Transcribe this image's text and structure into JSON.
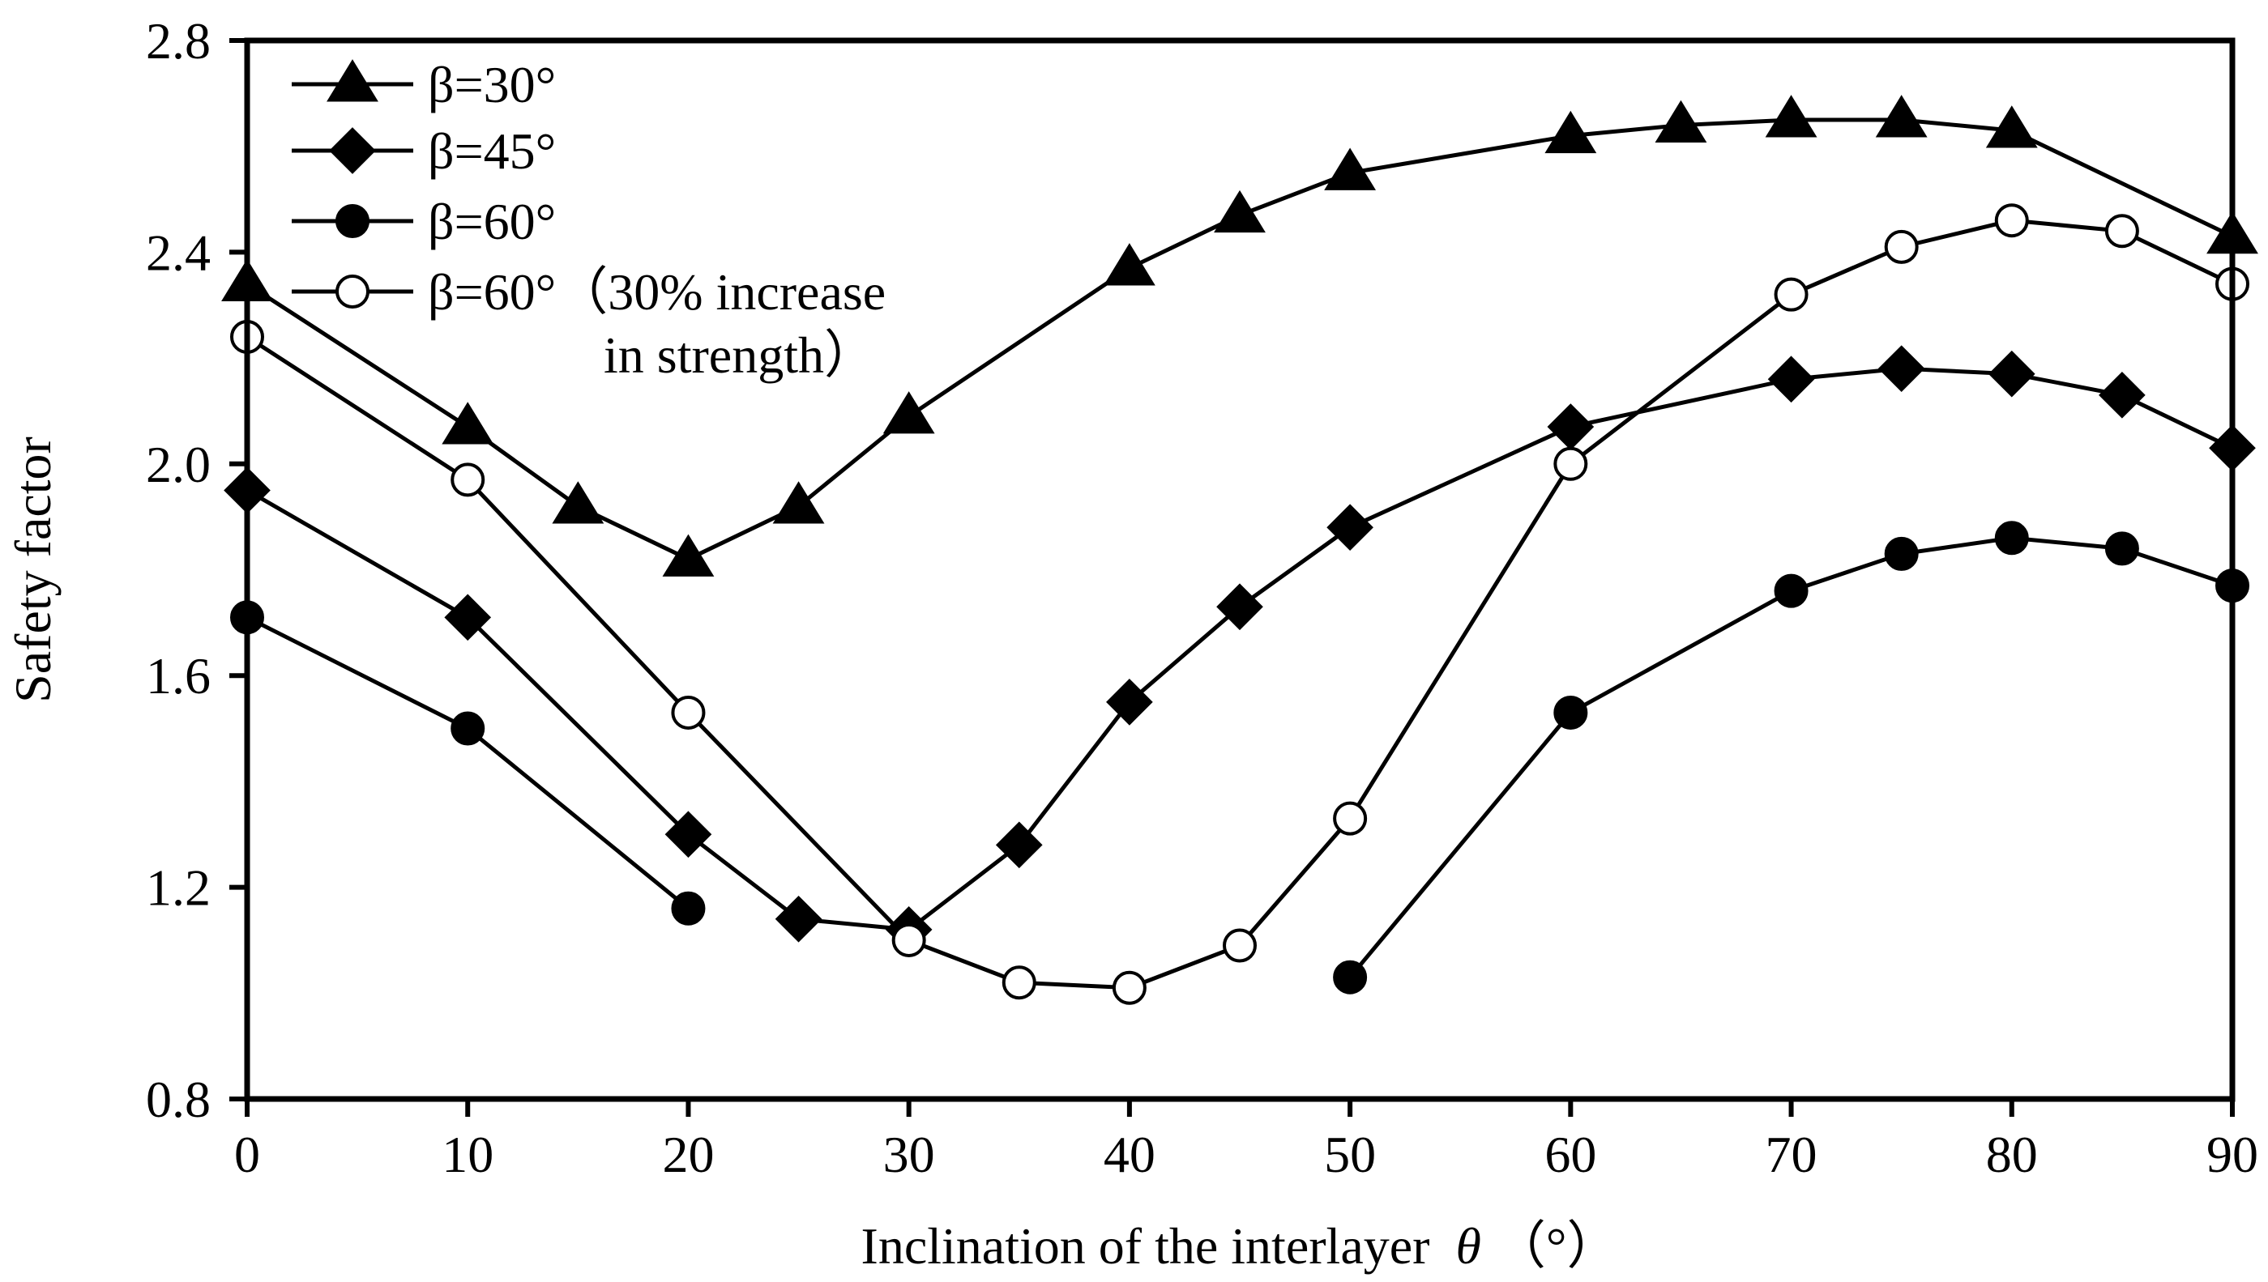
{
  "chart_data": {
    "type": "line",
    "xlabel": "Inclination of the interlayer",
    "xlabel_symbol": "θ",
    "xlabel_unit": "（°）",
    "ylabel": "Safety factor",
    "xlim": [
      0,
      90
    ],
    "ylim": [
      0.8,
      2.8
    ],
    "xticks": [
      "0",
      "10",
      "20",
      "30",
      "40",
      "50",
      "60",
      "70",
      "80",
      "90"
    ],
    "yticks": [
      "0.8",
      "1.2",
      "1.6",
      "2.0",
      "2.4",
      "2.8"
    ],
    "legend_position": "top-left",
    "series": [
      {
        "name": "β=30°",
        "marker": "triangle",
        "fill": "#000000",
        "segments": [
          [
            [
              0,
              2.34
            ],
            [
              10,
              2.07
            ],
            [
              15,
              1.92
            ],
            [
              20,
              1.82
            ],
            [
              25,
              1.92
            ],
            [
              30,
              2.09
            ],
            [
              40,
              2.37
            ],
            [
              45,
              2.47
            ],
            [
              50,
              2.55
            ],
            [
              60,
              2.62
            ],
            [
              65,
              2.64
            ],
            [
              70,
              2.65
            ],
            [
              75,
              2.65
            ],
            [
              80,
              2.63
            ],
            [
              90,
              2.43
            ]
          ]
        ]
      },
      {
        "name": "β=45°",
        "marker": "diamond",
        "fill": "#000000",
        "segments": [
          [
            [
              0,
              1.95
            ],
            [
              10,
              1.71
            ],
            [
              20,
              1.3
            ],
            [
              25,
              1.14
            ],
            [
              30,
              1.12
            ],
            [
              35,
              1.28
            ],
            [
              40,
              1.55
            ],
            [
              45,
              1.73
            ],
            [
              50,
              1.88
            ],
            [
              60,
              2.07
            ],
            [
              70,
              2.16
            ],
            [
              75,
              2.18
            ],
            [
              80,
              2.17
            ],
            [
              85,
              2.13
            ],
            [
              90,
              2.03
            ]
          ]
        ]
      },
      {
        "name": "β=60°",
        "marker": "circle",
        "fill": "#000000",
        "segments": [
          [
            [
              0,
              1.71
            ],
            [
              10,
              1.5
            ],
            [
              20,
              1.16
            ]
          ],
          [
            [
              50,
              1.03
            ],
            [
              60,
              1.53
            ],
            [
              70,
              1.76
            ],
            [
              75,
              1.83
            ],
            [
              80,
              1.86
            ],
            [
              85,
              1.84
            ],
            [
              90,
              1.77
            ]
          ]
        ]
      },
      {
        "name": "β=60°（30% increase",
        "name_line2": "in strength）",
        "marker": "circle",
        "fill": "#ffffff",
        "segments": [
          [
            [
              0,
              2.24
            ],
            [
              10,
              1.97
            ],
            [
              20,
              1.53
            ],
            [
              30,
              1.1
            ],
            [
              35,
              1.02
            ],
            [
              40,
              1.01
            ],
            [
              45,
              1.09
            ],
            [
              50,
              1.33
            ],
            [
              60,
              2.0
            ],
            [
              70,
              2.32
            ],
            [
              75,
              2.41
            ],
            [
              80,
              2.46
            ],
            [
              85,
              2.44
            ],
            [
              90,
              2.34
            ]
          ]
        ]
      }
    ]
  }
}
